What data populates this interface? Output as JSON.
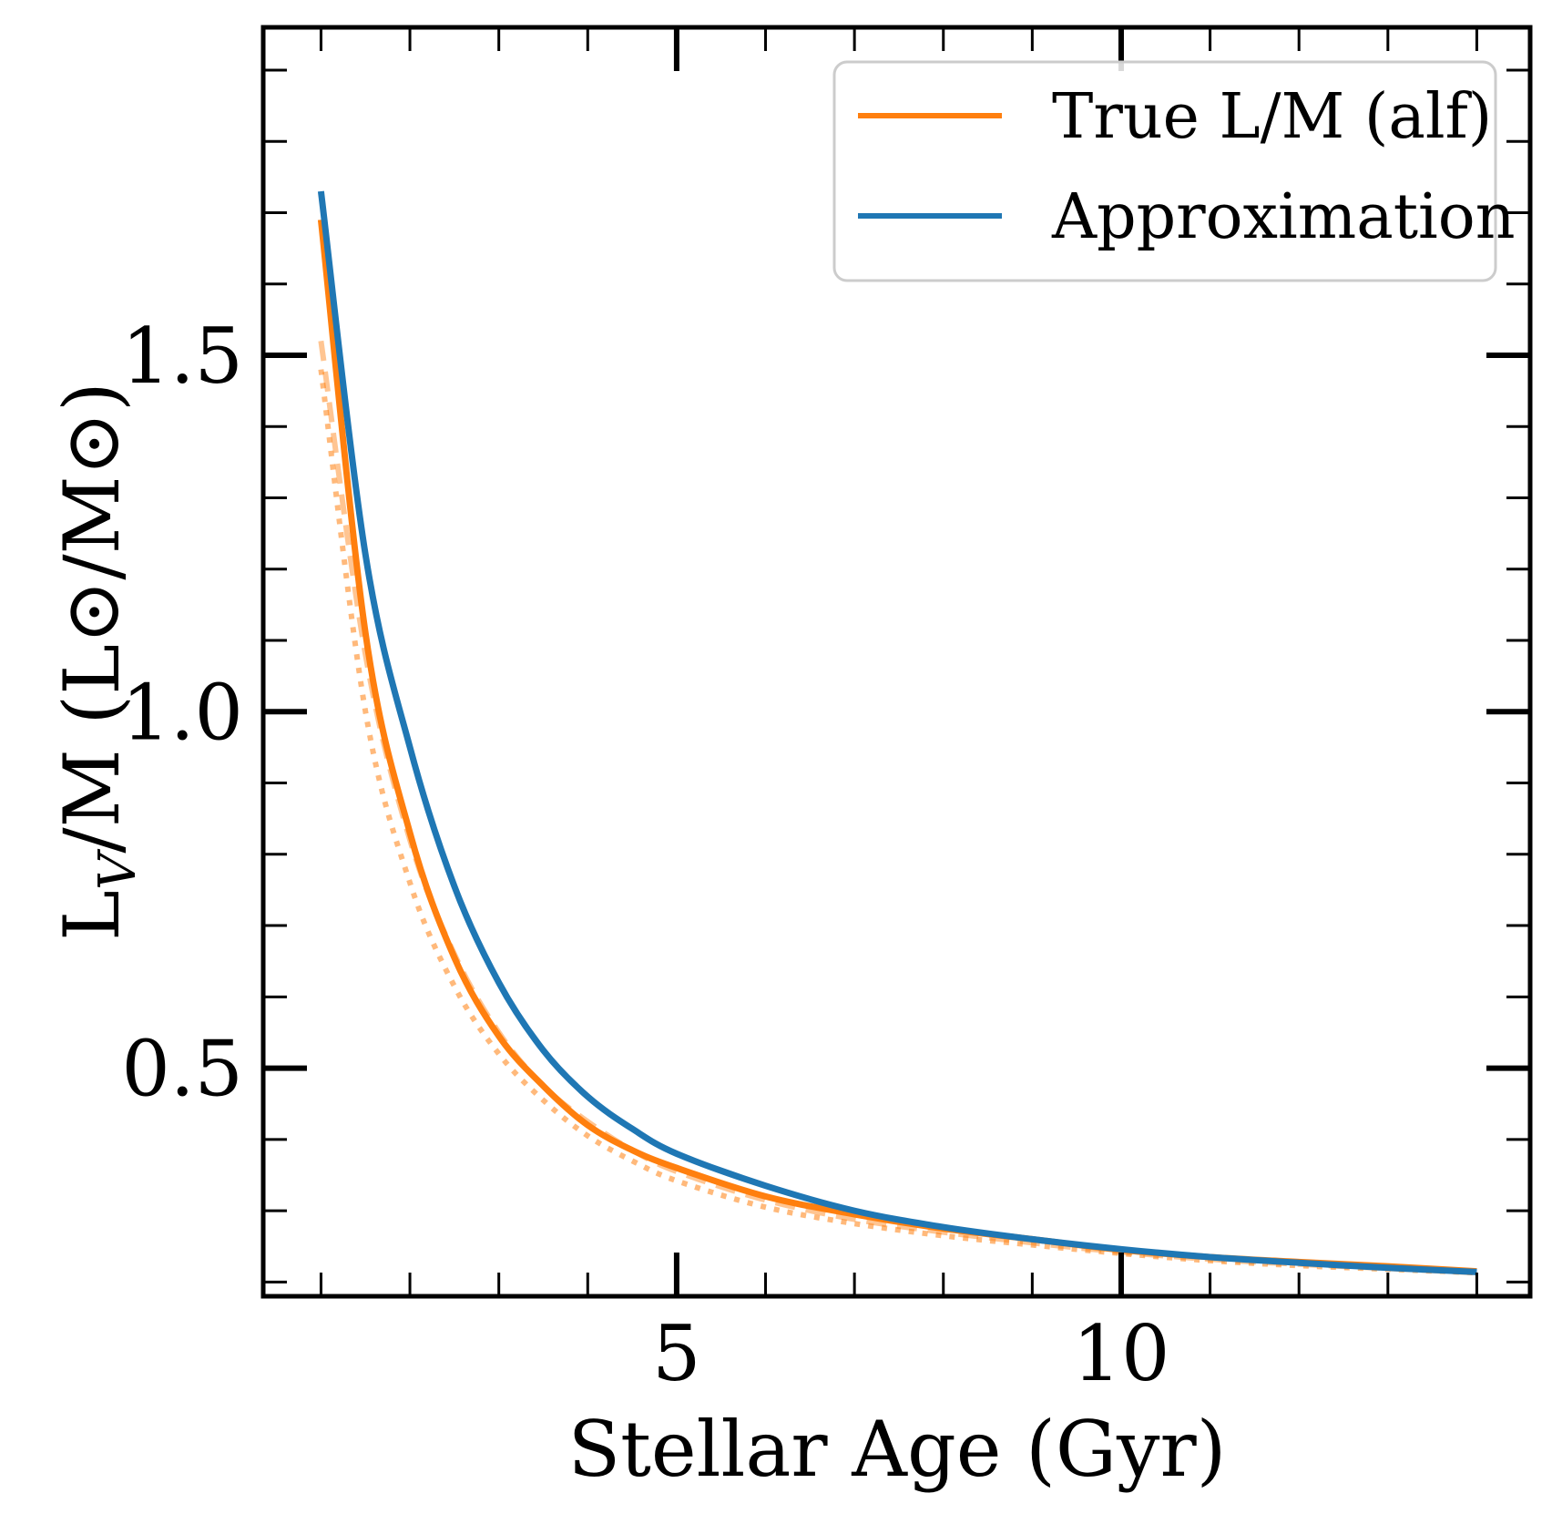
{
  "chart_data": {
    "type": "line",
    "title": "",
    "xlabel": "Stellar Age (Gyr)",
    "ylabel": "L_V/M (L⊙/M⊙)",
    "ylabel_main": "L",
    "ylabel_sub": "V",
    "ylabel_rest": "/M (L⊙/M⊙)",
    "xlim": [
      0.35,
      14.6
    ],
    "ylim": [
      0.18,
      1.96
    ],
    "xticks_major": [
      5,
      10
    ],
    "xtick_labels": [
      "5",
      "10"
    ],
    "yticks_major": [
      0.5,
      1.0,
      1.5
    ],
    "ytick_labels": [
      "0.5",
      "1.0",
      "1.5"
    ],
    "grid": false,
    "legend_position": "top-right",
    "colors": {
      "true": "#ff7f0e",
      "approx": "#1f77b4"
    },
    "x": [
      1.0,
      1.5,
      2.0,
      2.5,
      3.0,
      3.5,
      4.0,
      4.5,
      5.0,
      6.0,
      7.0,
      8.0,
      9.0,
      10.0,
      11.0,
      12.0,
      13.0,
      14.0
    ],
    "series": [
      {
        "name": "True L/M (alf)",
        "style": "solid",
        "values": [
          1.69,
          1.11,
          0.83,
          0.655,
          0.545,
          0.475,
          0.42,
          0.385,
          0.36,
          0.32,
          0.295,
          0.275,
          0.26,
          0.245,
          0.235,
          0.228,
          0.222,
          0.215
        ]
      },
      {
        "name": "Approximation",
        "style": "solid",
        "values": [
          1.73,
          1.22,
          0.95,
          0.755,
          0.62,
          0.525,
          0.46,
          0.415,
          0.38,
          0.335,
          0.3,
          0.277,
          0.26,
          0.246,
          0.235,
          0.227,
          0.22,
          0.214
        ]
      },
      {
        "name": "",
        "style": "dashed-faint",
        "values": [
          1.52,
          1.08,
          0.82,
          0.66,
          0.55,
          0.475,
          0.425,
          0.385,
          0.355,
          0.315,
          0.288,
          0.27,
          0.255,
          0.242,
          0.232,
          0.225,
          0.219,
          0.213
        ]
      },
      {
        "name": "",
        "style": "dotted-faint",
        "values": [
          1.48,
          1.0,
          0.76,
          0.615,
          0.52,
          0.455,
          0.405,
          0.37,
          0.342,
          0.305,
          0.282,
          0.265,
          0.252,
          0.24,
          0.23,
          0.223,
          0.218,
          0.213
        ]
      }
    ]
  }
}
